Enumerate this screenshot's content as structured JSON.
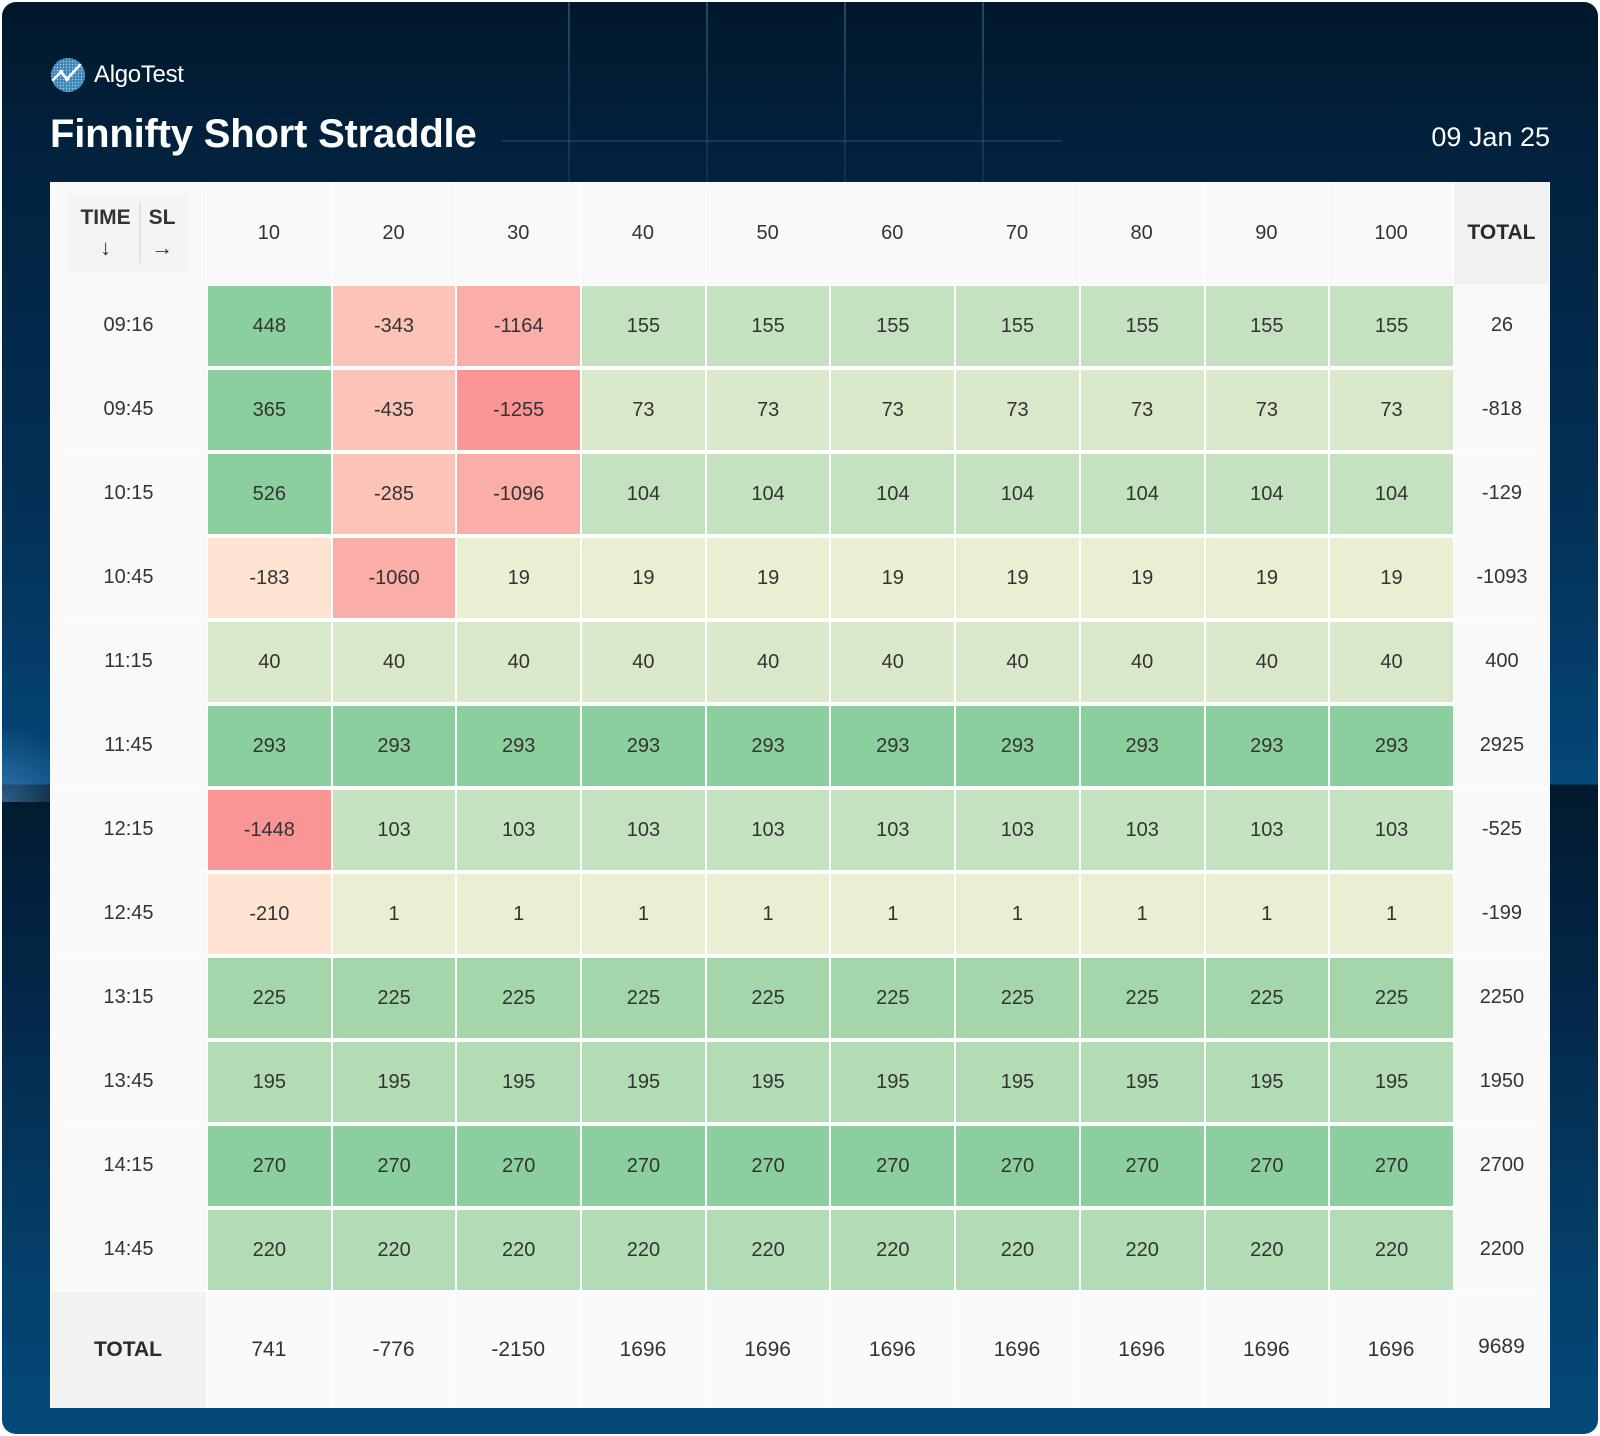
{
  "brand": {
    "name": "AlgoTest",
    "icon": "algotest-logo-icon"
  },
  "header": {
    "title": "Finnifty Short Straddle",
    "date": "09 Jan 25"
  },
  "table": {
    "corner": {
      "time_label": "TIME",
      "time_arrow": "↓",
      "sl_label": "SL",
      "sl_arrow": "→"
    },
    "total_label": "TOTAL"
  },
  "colors": {
    "positive_strong": "#8ccf9e",
    "positive_medium": "#a3d6a9",
    "positive_light": "#b2dcb4",
    "positive_pale": "#c5e2c0",
    "positive_faint": "#d9e8c9",
    "neutral": "#eaefd2",
    "negative_light": "#fde3d0",
    "negative_medium": "#fcc3b6",
    "negative_strong": "#fbaea8",
    "negative_max": "#fa9595"
  },
  "chart_data": {
    "type": "heatmap",
    "title": "Finnifty Short Straddle",
    "xlabel": "SL",
    "ylabel": "TIME",
    "x": [
      "10",
      "20",
      "30",
      "40",
      "50",
      "60",
      "70",
      "80",
      "90",
      "100"
    ],
    "y": [
      "09:16",
      "09:45",
      "10:15",
      "10:45",
      "11:15",
      "11:45",
      "12:15",
      "12:45",
      "13:15",
      "13:45",
      "14:15",
      "14:45"
    ],
    "values": [
      [
        448,
        -343,
        -1164,
        155,
        155,
        155,
        155,
        155,
        155,
        155
      ],
      [
        365,
        -435,
        -1255,
        73,
        73,
        73,
        73,
        73,
        73,
        73
      ],
      [
        526,
        -285,
        -1096,
        104,
        104,
        104,
        104,
        104,
        104,
        104
      ],
      [
        -183,
        -1060,
        19,
        19,
        19,
        19,
        19,
        19,
        19,
        19
      ],
      [
        40,
        40,
        40,
        40,
        40,
        40,
        40,
        40,
        40,
        40
      ],
      [
        293,
        293,
        293,
        293,
        293,
        293,
        293,
        293,
        293,
        293
      ],
      [
        -1448,
        103,
        103,
        103,
        103,
        103,
        103,
        103,
        103,
        103
      ],
      [
        -210,
        1,
        1,
        1,
        1,
        1,
        1,
        1,
        1,
        1
      ],
      [
        225,
        225,
        225,
        225,
        225,
        225,
        225,
        225,
        225,
        225
      ],
      [
        195,
        195,
        195,
        195,
        195,
        195,
        195,
        195,
        195,
        195
      ],
      [
        270,
        270,
        270,
        270,
        270,
        270,
        270,
        270,
        270,
        270
      ],
      [
        220,
        220,
        220,
        220,
        220,
        220,
        220,
        220,
        220,
        220
      ]
    ],
    "row_totals": [
      26,
      -818,
      -129,
      -1093,
      400,
      2925,
      -525,
      -199,
      2250,
      1950,
      2700,
      2200
    ],
    "column_totals": [
      741,
      -776,
      -2150,
      1696,
      1696,
      1696,
      1696,
      1696,
      1696,
      1696
    ],
    "grand_total": 9689
  }
}
